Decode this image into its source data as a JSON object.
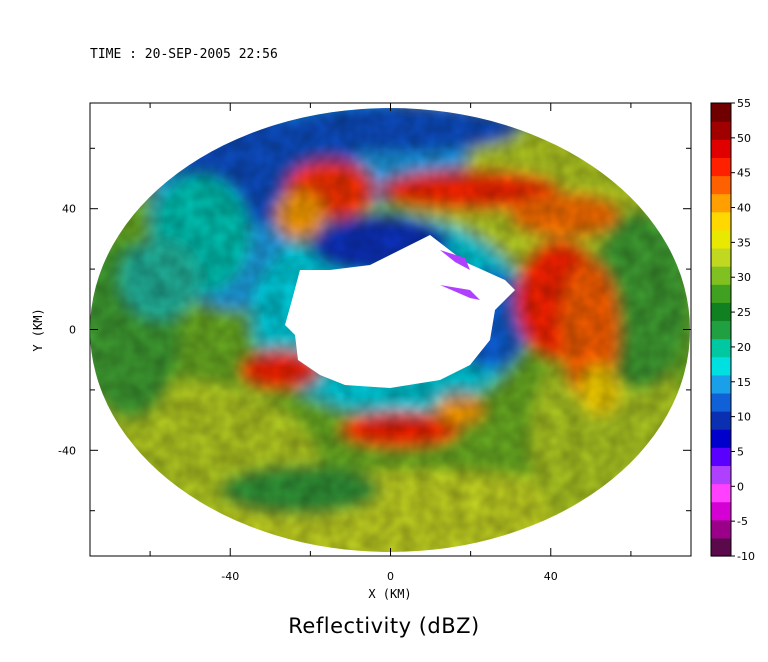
{
  "header": {
    "time_label": "TIME : 20-SEP-2005 22:56"
  },
  "chart_data": {
    "type": "heatmap",
    "title": "Reflectivity (dBZ)",
    "xlabel": "X (KM)",
    "ylabel": "Y (KM)",
    "xlim": [
      -75,
      75
    ],
    "ylim": [
      -75,
      75
    ],
    "x_ticks": [
      -40,
      0,
      40
    ],
    "y_ticks": [
      40,
      0,
      -40
    ],
    "grid": false,
    "colorbar": {
      "ticks": [
        55,
        50,
        45,
        40,
        35,
        30,
        25,
        20,
        15,
        10,
        5,
        0,
        -5,
        -10
      ],
      "range": [
        -10,
        55
      ],
      "colors": [
        "#5a0a4a",
        "#9b0088",
        "#d400d4",
        "#ff40ff",
        "#b040ff",
        "#5a00ff",
        "#0000cd",
        "#0a2fb0",
        "#1060d8",
        "#1aa0e8",
        "#00e0e0",
        "#00c8a0",
        "#20a040",
        "#108020",
        "#40a020",
        "#80c020",
        "#c0d820",
        "#e8e800",
        "#ffd800",
        "#ffa000",
        "#ff6000",
        "#ff2000",
        "#e00000",
        "#a00000",
        "#700000"
      ]
    }
  }
}
